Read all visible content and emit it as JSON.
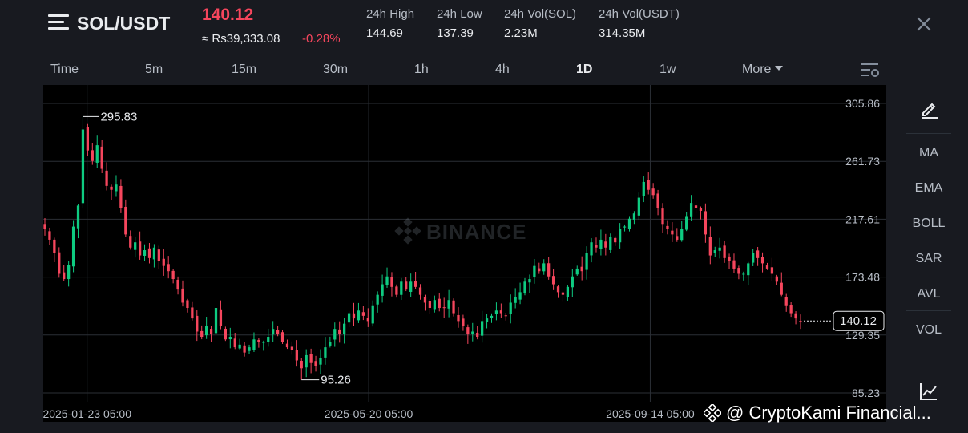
{
  "header": {
    "pair": "SOL/USDT",
    "price": "140.12",
    "fiat_price": "≈ Rs39,333.08",
    "change": "-0.28%",
    "stats": [
      {
        "label": "24h High",
        "value": "144.69"
      },
      {
        "label": "24h Low",
        "value": "137.39"
      },
      {
        "label": "24h Vol(SOL)",
        "value": "2.23M"
      },
      {
        "label": "24h Vol(USDT)",
        "value": "314.35M"
      }
    ]
  },
  "intervals": [
    {
      "label": "Time"
    },
    {
      "label": "5m"
    },
    {
      "label": "15m"
    },
    {
      "label": "30m"
    },
    {
      "label": "1h"
    },
    {
      "label": "4h"
    },
    {
      "label": "1D",
      "active": true
    },
    {
      "label": "1w"
    },
    {
      "label": "More"
    }
  ],
  "sidebar": {
    "tools": [
      "MA",
      "EMA",
      "BOLL",
      "SAR",
      "AVL",
      "VOL"
    ]
  },
  "watermark": "BINANCE",
  "credit": "@ CryptoKami Financial...",
  "colors": {
    "up": "#0ecb81",
    "down": "#f6465d",
    "background": "#181a20",
    "chart_bg": "#000000",
    "grid": "#2b2f36"
  },
  "chart_data": {
    "type": "candlestick",
    "y_ticks": [
      "305.86",
      "261.73",
      "217.61",
      "173.48",
      "129.35",
      "85.23"
    ],
    "ylim": [
      85.23,
      305.86
    ],
    "x_labels": [
      "2025-01-23 05:00",
      "2025-05-20 05:00",
      "2025-09-14 05:00"
    ],
    "high_marker": "295.83",
    "low_marker": "95.26",
    "last_price": "140.12",
    "close_series_approx": [
      210,
      202,
      192,
      176,
      172,
      183,
      212,
      228,
      286,
      270,
      262,
      274,
      256,
      243,
      240,
      244,
      226,
      206,
      196,
      200,
      190,
      194,
      188,
      196,
      186,
      182,
      178,
      172,
      164,
      154,
      150,
      142,
      132,
      128,
      136,
      130,
      150,
      136,
      126,
      128,
      120,
      122,
      116,
      120,
      126,
      124,
      124,
      128,
      134,
      130,
      124,
      120,
      118,
      110,
      104,
      114,
      108,
      106,
      112,
      120,
      124,
      134,
      130,
      138,
      146,
      142,
      148,
      144,
      140,
      152,
      160,
      168,
      174,
      166,
      160,
      170,
      164,
      170,
      166,
      160,
      154,
      150,
      156,
      150,
      150,
      156,
      146,
      140,
      136,
      130,
      132,
      128,
      140,
      142,
      144,
      148,
      146,
      144,
      154,
      158,
      162,
      170,
      172,
      182,
      178,
      184,
      174,
      168,
      162,
      160,
      166,
      174,
      180,
      178,
      192,
      200,
      196,
      202,
      196,
      204,
      200,
      210,
      212,
      218,
      222,
      234,
      246,
      240,
      236,
      226,
      214,
      210,
      206,
      202,
      210,
      220,
      230,
      226,
      224,
      206,
      190,
      194,
      196,
      188,
      186,
      180,
      176,
      176,
      184,
      192,
      188,
      184,
      180,
      176,
      170,
      160,
      152,
      146,
      142,
      140
    ]
  }
}
